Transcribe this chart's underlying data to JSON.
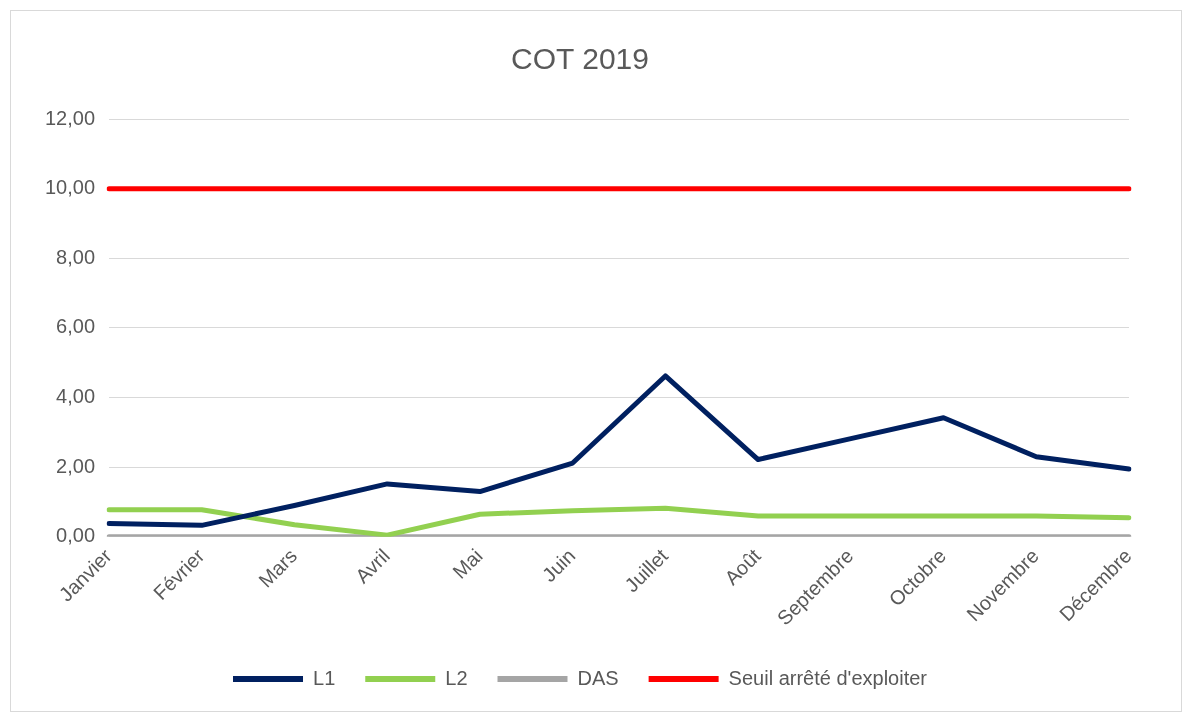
{
  "chart_data": {
    "type": "line",
    "title": "COT 2019",
    "categories": [
      "Janvier",
      "Février",
      "Mars",
      "Avril",
      "Mai",
      "Juin",
      "Juillet",
      "Août",
      "Septembre",
      "Octobre",
      "Novembre",
      "Décembre"
    ],
    "series": [
      {
        "name": "L1",
        "color": "#002060",
        "values": [
          0.38,
          0.33,
          0.9,
          1.52,
          1.3,
          2.12,
          4.62,
          2.22,
          2.82,
          3.42,
          2.3,
          1.95
        ]
      },
      {
        "name": "L2",
        "color": "#92d050",
        "values": [
          0.78,
          0.78,
          0.35,
          0.05,
          0.65,
          0.75,
          0.82,
          0.6,
          0.6,
          0.6,
          0.6,
          0.55
        ]
      },
      {
        "name": "DAS",
        "color": "#a5a5a5",
        "values": [
          0,
          0,
          0,
          0,
          0,
          0,
          0,
          0,
          0,
          0,
          0,
          0
        ]
      },
      {
        "name": "Seuil arrêté d'exploiter",
        "color": "#ff0000",
        "values": [
          10,
          10,
          10,
          10,
          10,
          10,
          10,
          10,
          10,
          10,
          10,
          10
        ]
      }
    ],
    "ylim": [
      0,
      12
    ],
    "yticks": [
      {
        "value": 0,
        "label": "0,00"
      },
      {
        "value": 2,
        "label": "2,00"
      },
      {
        "value": 4,
        "label": "4,00"
      },
      {
        "value": 6,
        "label": "6,00"
      },
      {
        "value": 8,
        "label": "8,00"
      },
      {
        "value": 10,
        "label": "10,00"
      },
      {
        "value": 12,
        "label": "12,00"
      }
    ],
    "grid": "y",
    "legend": "bottom",
    "marker": "none",
    "line_style": "solid"
  }
}
